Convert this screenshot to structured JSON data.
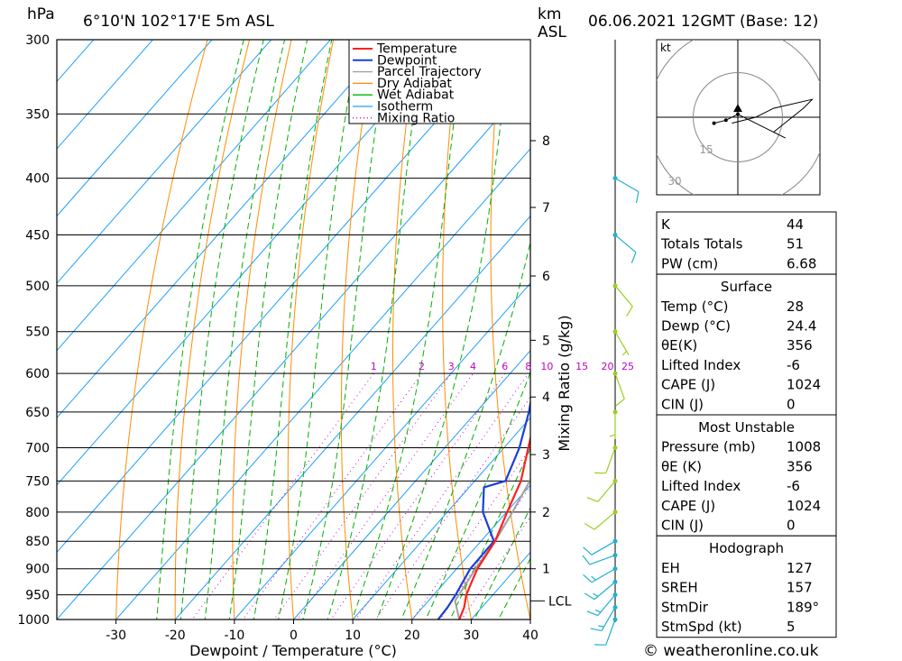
{
  "header": {
    "location": "6°10'N 102°17'E 5m ASL",
    "datetime": "06.06.2021 12GMT (Base: 12)",
    "hpa_unit": "hPa",
    "km_unit": "km",
    "asl_unit": "ASL",
    "credit": "© weatheronline.co.uk"
  },
  "colors": {
    "temperature": "#ff2020",
    "dewpoint": "#1a3fd8",
    "parcel": "#a0a0a0",
    "dry_adiabat": "#ff8c00",
    "wet_adiabat": "#00b000",
    "isotherm": "#1ea0ff",
    "mixing_ratio": "#d000d0",
    "wind": "#20b0d0"
  },
  "chart_data": {
    "type": "line",
    "title": "6°10'N 102°17'E 5m ASL",
    "xlabel": "Dewpoint / Temperature (°C)",
    "ylabel": "hPa",
    "xlim": [
      -40,
      40
    ],
    "ylim": [
      1000,
      300
    ],
    "x_ticks": [
      -30,
      -20,
      -10,
      0,
      10,
      20,
      30,
      40
    ],
    "pressure_levels": [
      300,
      350,
      400,
      450,
      500,
      550,
      600,
      650,
      700,
      750,
      800,
      850,
      900,
      950,
      1000
    ],
    "right_axis": {
      "label": "Mixing Ratio (g/kg)",
      "km_ticks": [
        {
          "km": "1",
          "p": 900
        },
        {
          "km": "2",
          "p": 800
        },
        {
          "km": "3",
          "p": 710
        },
        {
          "km": "4",
          "p": 630
        },
        {
          "km": "5",
          "p": 560
        },
        {
          "km": "6",
          "p": 490
        },
        {
          "km": "7",
          "p": 425
        },
        {
          "km": "8",
          "p": 370
        }
      ],
      "lcl": {
        "label": "LCL",
        "p": 962
      }
    },
    "mixing_ratio_labels": [
      "1",
      "2",
      "3",
      "4",
      "6",
      "8",
      "10",
      "15",
      "20",
      "25"
    ],
    "mixing_ratio_values": [
      1,
      2,
      3,
      4,
      6,
      8,
      10,
      15,
      20,
      25
    ],
    "legend": [
      "Temperature",
      "Dewpoint",
      "Parcel Trajectory",
      "Dry Adiabat",
      "Wet Adiabat",
      "Isotherm",
      "Mixing Ratio"
    ],
    "series": [
      {
        "name": "Temperature",
        "points": [
          [
            1000,
            28
          ],
          [
            975,
            27
          ],
          [
            950,
            25.5
          ],
          [
            925,
            24.5
          ],
          [
            900,
            23.5
          ],
          [
            850,
            22.4
          ],
          [
            800,
            20.1
          ],
          [
            750,
            17.8
          ],
          [
            700,
            14.1
          ],
          [
            650,
            10.2
          ],
          [
            600,
            5.9
          ],
          [
            550,
            0.8
          ],
          [
            500,
            -5.1
          ],
          [
            450,
            -11.3
          ],
          [
            400,
            -17.9
          ],
          [
            375,
            -21.9
          ],
          [
            368,
            -23.2
          ]
        ]
      },
      {
        "name": "Dewpoint",
        "points": [
          [
            1000,
            24.4
          ],
          [
            975,
            24.2
          ],
          [
            950,
            23.7
          ],
          [
            900,
            22.3
          ],
          [
            850,
            22.2
          ],
          [
            800,
            16
          ],
          [
            760,
            12.5
          ],
          [
            750,
            15.2
          ],
          [
            700,
            12.6
          ],
          [
            650,
            8.9
          ],
          [
            600,
            4.3
          ],
          [
            550,
            -1
          ],
          [
            500,
            -7.6
          ],
          [
            493,
            -6.7
          ],
          [
            450,
            -12.7
          ],
          [
            400,
            -20
          ],
          [
            375,
            -24.1
          ],
          [
            368,
            -23.2
          ]
        ]
      },
      {
        "name": "Parcel Trajectory",
        "points": [
          [
            1000,
            28
          ],
          [
            962,
            24.5
          ],
          [
            900,
            23.2
          ],
          [
            850,
            22.4
          ],
          [
            800,
            21
          ],
          [
            750,
            19.3
          ],
          [
            700,
            17.4
          ],
          [
            650,
            15.1
          ],
          [
            600,
            12.5
          ],
          [
            550,
            9.5
          ],
          [
            500,
            6
          ],
          [
            450,
            1.7
          ],
          [
            400,
            -3.6
          ],
          [
            375,
            -6.8
          ],
          [
            360,
            -8.7
          ]
        ]
      }
    ]
  },
  "indices": {
    "rows": [
      {
        "label": "K",
        "value": "44"
      },
      {
        "label": "Totals Totals",
        "value": "51"
      },
      {
        "label": "PW (cm)",
        "value": "6.68"
      }
    ]
  },
  "surface": {
    "title": "Surface",
    "rows": [
      {
        "label": "Temp (°C)",
        "value": "28"
      },
      {
        "label": "Dewp (°C)",
        "value": "24.4"
      },
      {
        "label": "θE(K)",
        "value": "356"
      },
      {
        "label": "Lifted Index",
        "value": "-6"
      },
      {
        "label": "CAPE (J)",
        "value": "1024"
      },
      {
        "label": "CIN (J)",
        "value": "0"
      }
    ]
  },
  "most_unstable": {
    "title": "Most Unstable",
    "rows": [
      {
        "label": "Pressure (mb)",
        "value": "1008"
      },
      {
        "label": "θE (K)",
        "value": "356"
      },
      {
        "label": "Lifted Index",
        "value": "-6"
      },
      {
        "label": "CAPE (J)",
        "value": "1024"
      },
      {
        "label": "CIN (J)",
        "value": "0"
      }
    ]
  },
  "hodograph_table": {
    "title": "Hodograph",
    "rows": [
      {
        "label": "EH",
        "value": "127"
      },
      {
        "label": "SREH",
        "value": "157"
      },
      {
        "label": "StmDir",
        "value": "189°"
      },
      {
        "label": "StmSpd (kt)",
        "value": "5"
      }
    ]
  },
  "hodograph": {
    "unit": "kt",
    "rings": [
      15,
      30,
      45
    ],
    "ring_labels": [
      "15",
      "30",
      "45"
    ],
    "trace_kt": [
      [
        -8,
        2
      ],
      [
        -4,
        1
      ],
      [
        0,
        -1
      ],
      [
        4,
        1
      ],
      [
        8,
        3
      ],
      [
        16,
        7
      ],
      [
        12,
        5
      ],
      [
        22,
        -3
      ],
      [
        25,
        -6
      ],
      [
        12,
        -3
      ],
      [
        6,
        0
      ],
      [
        -2,
        2
      ]
    ],
    "storm_motion_kt": [
      0,
      3
    ]
  },
  "winds": {
    "profile": [
      {
        "p": 1000,
        "dir": 200,
        "spd": 10
      },
      {
        "p": 975,
        "dir": 210,
        "spd": 15
      },
      {
        "p": 950,
        "dir": 220,
        "spd": 15
      },
      {
        "p": 925,
        "dir": 230,
        "spd": 15
      },
      {
        "p": 900,
        "dir": 240,
        "spd": 15
      },
      {
        "p": 875,
        "dir": 250,
        "spd": 10
      },
      {
        "p": 850,
        "dir": 240,
        "spd": 10
      },
      {
        "p": 800,
        "dir": 230,
        "spd": 10
      },
      {
        "p": 750,
        "dir": 220,
        "spd": 10
      },
      {
        "p": 700,
        "dir": 200,
        "spd": 10
      },
      {
        "p": 650,
        "dir": 180,
        "spd": 5
      },
      {
        "p": 600,
        "dir": 160,
        "spd": 10
      },
      {
        "p": 550,
        "dir": 150,
        "spd": 5
      },
      {
        "p": 500,
        "dir": 140,
        "spd": 10
      },
      {
        "p": 450,
        "dir": 130,
        "spd": 10
      },
      {
        "p": 400,
        "dir": 120,
        "spd": 10
      }
    ]
  }
}
